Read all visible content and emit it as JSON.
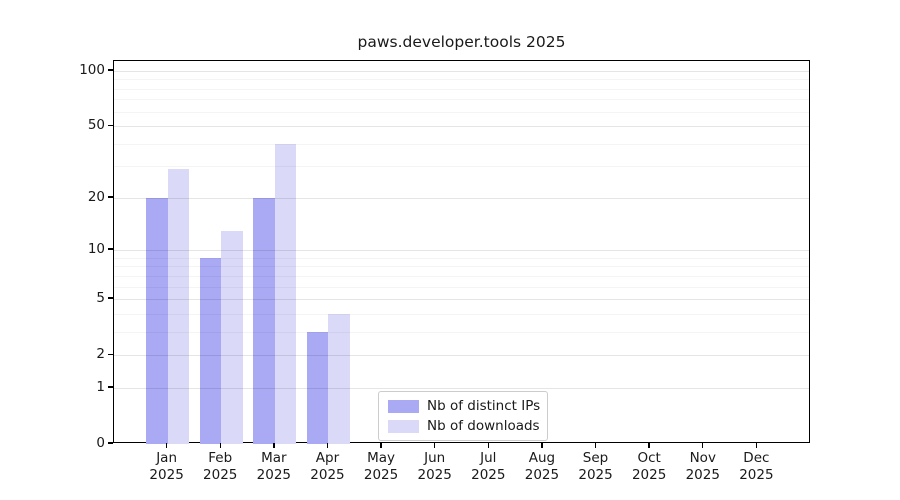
{
  "chart_data": {
    "type": "bar",
    "title": "paws.developer.tools 2025",
    "year": "2025",
    "months": [
      "Jan",
      "Feb",
      "Mar",
      "Apr",
      "May",
      "Jun",
      "Jul",
      "Aug",
      "Sep",
      "Oct",
      "Nov",
      "Dec"
    ],
    "categories": [
      "Jan 2025",
      "Feb 2025",
      "Mar 2025",
      "Apr 2025",
      "May 2025",
      "Jun 2025",
      "Jul 2025",
      "Aug 2025",
      "Sep 2025",
      "Oct 2025",
      "Nov 2025",
      "Dec 2025"
    ],
    "series": [
      {
        "name": "Nb of distinct IPs",
        "color": "#a9a9f4",
        "values": [
          20,
          9,
          20,
          3,
          0,
          0,
          0,
          0,
          0,
          0,
          0,
          0
        ]
      },
      {
        "name": "Nb of downloads",
        "color": "#dadaf8",
        "values": [
          29,
          13,
          40,
          4,
          0,
          0,
          0,
          0,
          0,
          0,
          0,
          0
        ]
      }
    ],
    "xlabel": "",
    "ylabel": "",
    "yscale": "log1p",
    "ylim": [
      0,
      113
    ],
    "y_major_ticks": [
      0,
      1,
      2,
      5,
      10,
      20,
      50,
      100
    ],
    "y_minor_gridlines": [
      3,
      4,
      6,
      7,
      8,
      9,
      30,
      40,
      60,
      70,
      80,
      90
    ],
    "grid": true,
    "legend_position": "lower center"
  },
  "colors": {
    "background": "#ffffff",
    "spine": "#000000",
    "text": "#1a1a1a",
    "grid_major": "rgba(0,0,0,0.10)",
    "grid_minor": "rgba(0,0,0,0.045)",
    "legend_border": "#cccccc"
  }
}
